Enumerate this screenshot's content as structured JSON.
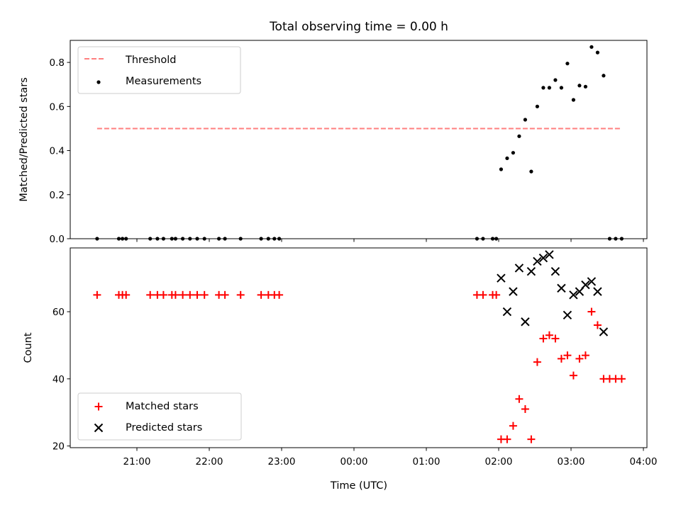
{
  "title": "Total observing time = 0.00 h",
  "xlabel": "Time (UTC)",
  "x_ticks": [
    "21:00",
    "22:00",
    "23:00",
    "00:00",
    "01:00",
    "02:00",
    "03:00",
    "04:00"
  ],
  "chart_data": [
    {
      "type": "scatter",
      "ylabel": "Matched/Predicted stars",
      "ylim": [
        0,
        0.9
      ],
      "y_ticks": [
        "0.0",
        "0.2",
        "0.4",
        "0.6",
        "0.8"
      ],
      "legend_position": "top-left",
      "threshold": {
        "name": "Threshold",
        "value": 0.5,
        "x_range": [
          "20:27",
          "03:42"
        ],
        "color": "#ff7f7f",
        "style": "dashed"
      },
      "series": [
        {
          "name": "Measurements",
          "color": "#000000",
          "marker": "dot",
          "points": [
            [
              "20:27",
              0.0
            ],
            [
              "20:45",
              0.0
            ],
            [
              "20:48",
              0.0
            ],
            [
              "20:51",
              0.0
            ],
            [
              "21:11",
              0.0
            ],
            [
              "21:17",
              0.0
            ],
            [
              "21:22",
              0.0
            ],
            [
              "21:29",
              0.0
            ],
            [
              "21:32",
              0.0
            ],
            [
              "21:38",
              0.0
            ],
            [
              "21:44",
              0.0
            ],
            [
              "21:50",
              0.0
            ],
            [
              "21:56",
              0.0
            ],
            [
              "22:08",
              0.0
            ],
            [
              "22:13",
              0.0
            ],
            [
              "22:26",
              0.0
            ],
            [
              "22:43",
              0.0
            ],
            [
              "22:49",
              0.0
            ],
            [
              "22:54",
              0.0
            ],
            [
              "22:58",
              0.0
            ],
            [
              "01:42",
              0.0
            ],
            [
              "01:47",
              0.0
            ],
            [
              "01:55",
              0.0
            ],
            [
              "01:58",
              0.0
            ],
            [
              "02:02",
              0.315
            ],
            [
              "02:07",
              0.365
            ],
            [
              "02:12",
              0.39
            ],
            [
              "02:17",
              0.465
            ],
            [
              "02:22",
              0.54
            ],
            [
              "02:27",
              0.305
            ],
            [
              "02:32",
              0.6
            ],
            [
              "02:37",
              0.685
            ],
            [
              "02:42",
              0.685
            ],
            [
              "02:47",
              0.72
            ],
            [
              "02:52",
              0.685
            ],
            [
              "02:57",
              0.795
            ],
            [
              "03:02",
              0.63
            ],
            [
              "03:07",
              0.695
            ],
            [
              "03:12",
              0.69
            ],
            [
              "03:17",
              0.87
            ],
            [
              "03:22",
              0.845
            ],
            [
              "03:27",
              0.74
            ],
            [
              "03:32",
              0.0
            ],
            [
              "03:37",
              0.0
            ],
            [
              "03:42",
              0.0
            ]
          ]
        }
      ]
    },
    {
      "type": "scatter",
      "ylabel": "Count",
      "ylim": [
        19.5,
        79
      ],
      "y_ticks": [
        "20",
        "40",
        "60"
      ],
      "legend_position": "bottom-left",
      "series": [
        {
          "name": "Matched stars",
          "color": "#ff0000",
          "marker": "plus",
          "points": [
            [
              "20:27",
              65
            ],
            [
              "20:45",
              65
            ],
            [
              "20:48",
              65
            ],
            [
              "20:51",
              65
            ],
            [
              "21:11",
              65
            ],
            [
              "21:17",
              65
            ],
            [
              "21:22",
              65
            ],
            [
              "21:29",
              65
            ],
            [
              "21:32",
              65
            ],
            [
              "21:38",
              65
            ],
            [
              "21:44",
              65
            ],
            [
              "21:50",
              65
            ],
            [
              "21:56",
              65
            ],
            [
              "22:08",
              65
            ],
            [
              "22:13",
              65
            ],
            [
              "22:26",
              65
            ],
            [
              "22:43",
              65
            ],
            [
              "22:49",
              65
            ],
            [
              "22:54",
              65
            ],
            [
              "22:58",
              65
            ],
            [
              "01:42",
              65
            ],
            [
              "01:47",
              65
            ],
            [
              "01:55",
              65
            ],
            [
              "01:58",
              65
            ],
            [
              "02:02",
              22
            ],
            [
              "02:07",
              22
            ],
            [
              "02:12",
              26
            ],
            [
              "02:17",
              34
            ],
            [
              "02:22",
              31
            ],
            [
              "02:27",
              22
            ],
            [
              "02:32",
              45
            ],
            [
              "02:37",
              52
            ],
            [
              "02:42",
              53
            ],
            [
              "02:47",
              52
            ],
            [
              "02:52",
              46
            ],
            [
              "02:57",
              47
            ],
            [
              "03:02",
              41
            ],
            [
              "03:07",
              46
            ],
            [
              "03:12",
              47
            ],
            [
              "03:17",
              60
            ],
            [
              "03:22",
              56
            ],
            [
              "03:27",
              40
            ],
            [
              "03:32",
              40
            ],
            [
              "03:37",
              40
            ],
            [
              "03:42",
              40
            ]
          ]
        },
        {
          "name": "Predicted stars",
          "color": "#000000",
          "marker": "x",
          "points": [
            [
              "02:02",
              70
            ],
            [
              "02:07",
              60
            ],
            [
              "02:12",
              66
            ],
            [
              "02:17",
              73
            ],
            [
              "02:22",
              57
            ],
            [
              "02:27",
              72
            ],
            [
              "02:32",
              75
            ],
            [
              "02:37",
              76
            ],
            [
              "02:42",
              77
            ],
            [
              "02:47",
              72
            ],
            [
              "02:52",
              67
            ],
            [
              "02:57",
              59
            ],
            [
              "03:02",
              65
            ],
            [
              "03:07",
              66
            ],
            [
              "03:12",
              68
            ],
            [
              "03:17",
              69
            ],
            [
              "03:22",
              66
            ],
            [
              "03:27",
              54
            ]
          ]
        }
      ]
    }
  ]
}
